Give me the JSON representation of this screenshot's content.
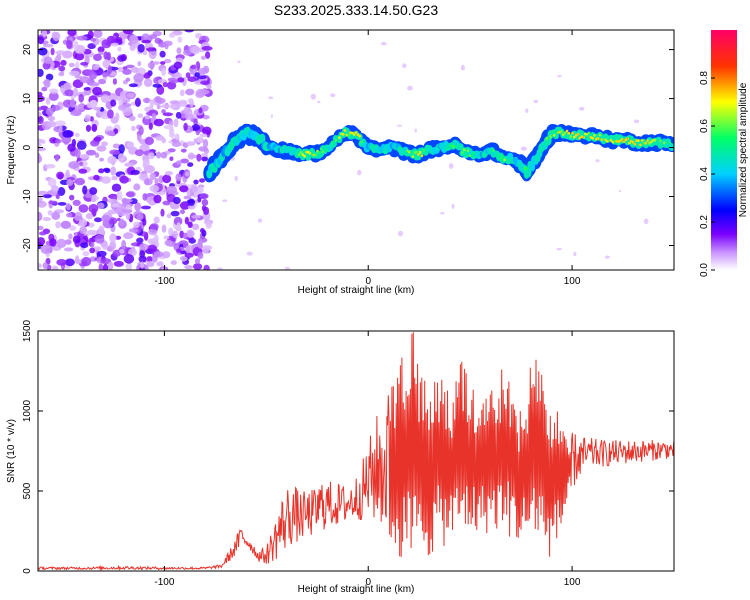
{
  "chart_data": [
    {
      "type": "heatmap",
      "title": "S233.2025.333.14.50.G23",
      "xlabel": "Height of straight line (km)",
      "ylabel": "Frequency (Hz)",
      "xlim": [
        -162,
        150
      ],
      "ylim": [
        -25,
        24
      ],
      "x_ticks": [
        -100,
        0,
        100
      ],
      "y_ticks": [
        -20,
        -10,
        0,
        10,
        20
      ],
      "colorbar": {
        "label": "Normalized spectral amplitude",
        "range": [
          0.0,
          1.0
        ],
        "ticks": [
          "0.0",
          "0.2",
          "0.4",
          "0.6",
          "0.8"
        ],
        "colors": [
          "#ffffff",
          "#cc99ff",
          "#7a00ff",
          "#0000ff",
          "#00d0ff",
          "#00ff66",
          "#ffff00",
          "#ff3300",
          "#ff0066"
        ]
      },
      "noise_region_x": [
        -162,
        -78
      ],
      "signal_ridge": {
        "x": [
          -78,
          -72,
          -66,
          -60,
          -54,
          -48,
          -42,
          -36,
          -30,
          -24,
          -18,
          -12,
          -6,
          0,
          6,
          12,
          18,
          24,
          30,
          36,
          42,
          48,
          54,
          60,
          66,
          72,
          78,
          84,
          90,
          96,
          102,
          108,
          114,
          120,
          126,
          132,
          138,
          144,
          150
        ],
        "freq": [
          -5,
          -2,
          1,
          3,
          2,
          0,
          -0.5,
          -1,
          -1.5,
          -1,
          0.5,
          3,
          2.5,
          0,
          -0.5,
          0,
          -1,
          -1.5,
          -0.5,
          0,
          0.5,
          -1,
          -1.5,
          -0.5,
          -2,
          -2.5,
          -5,
          -1,
          3,
          3,
          2.5,
          2.5,
          2,
          1.5,
          1.5,
          1,
          1,
          1,
          0.5
        ],
        "amp": [
          0.55,
          0.45,
          0.5,
          0.5,
          0.5,
          0.45,
          0.45,
          0.5,
          0.8,
          0.6,
          0.55,
          0.75,
          0.8,
          0.45,
          0.5,
          0.45,
          0.55,
          0.8,
          0.5,
          0.45,
          0.55,
          0.6,
          0.45,
          0.5,
          0.65,
          0.45,
          0.55,
          0.5,
          0.6,
          0.8,
          0.85,
          0.8,
          0.7,
          0.65,
          0.9,
          0.85,
          0.7,
          0.6,
          0.5
        ]
      }
    },
    {
      "type": "line",
      "xlabel": "Height of straight line (km)",
      "ylabel": "SNR (10 * v/v)",
      "xlim": [
        -162,
        150
      ],
      "ylim": [
        0,
        1500
      ],
      "x_ticks": [
        -100,
        0,
        100
      ],
      "y_ticks": [
        0,
        500,
        1000,
        1500
      ],
      "color": "#e8332a",
      "series": [
        {
          "name": "SNR",
          "x": [
            -162,
            -140,
            -120,
            -100,
            -80,
            -72,
            -66,
            -62,
            -58,
            -54,
            -50,
            -46,
            -42,
            -38,
            -34,
            -30,
            -26,
            -22,
            -18,
            -14,
            -10,
            -6,
            -2,
            2,
            6,
            10,
            14,
            18,
            22,
            26,
            30,
            34,
            38,
            42,
            46,
            50,
            54,
            58,
            62,
            66,
            70,
            74,
            78,
            82,
            86,
            90,
            94,
            98,
            102,
            106,
            110,
            116,
            122,
            128,
            134,
            140,
            146,
            150
          ],
          "low": [
            10,
            10,
            10,
            10,
            10,
            20,
            80,
            150,
            130,
            60,
            40,
            60,
            100,
            150,
            180,
            200,
            220,
            250,
            270,
            280,
            300,
            310,
            320,
            300,
            250,
            180,
            80,
            30,
            20,
            60,
            80,
            120,
            160,
            180,
            200,
            220,
            220,
            230,
            250,
            230,
            200,
            160,
            150,
            200,
            120,
            60,
            200,
            400,
            550,
            600,
            640,
            650,
            660,
            670,
            680,
            690,
            700,
            700
          ],
          "high": [
            25,
            25,
            30,
            25,
            25,
            40,
            180,
            300,
            200,
            130,
            150,
            320,
            480,
            580,
            500,
            500,
            520,
            600,
            560,
            550,
            540,
            600,
            720,
            900,
            1050,
            1150,
            1300,
            1400,
            1500,
            1300,
            1200,
            1300,
            1250,
            1150,
            1400,
            1250,
            1100,
            1200,
            1150,
            1300,
            1250,
            1000,
            1200,
            1400,
            1300,
            1000,
            1000,
            900,
            860,
            840,
            830,
            820,
            820,
            820,
            820,
            820,
            820,
            810
          ]
        }
      ]
    }
  ]
}
